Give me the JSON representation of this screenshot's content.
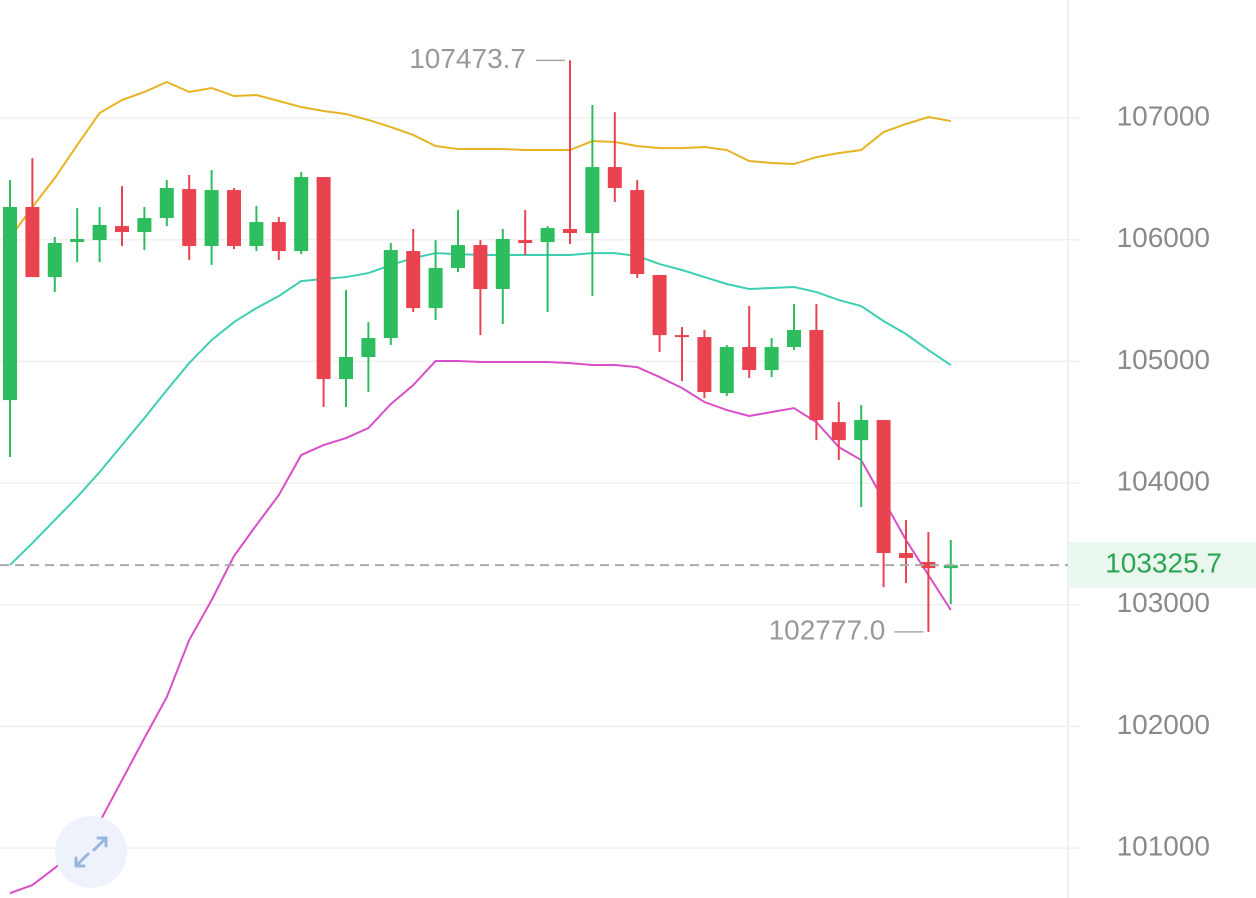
{
  "chart_data": {
    "type": "candlestick",
    "open": [
      104682,
      106269,
      105693,
      105981,
      105997,
      106112,
      106063,
      106178,
      106416,
      105948,
      106408,
      105948,
      106145,
      105907,
      106515,
      104855,
      105036,
      105192,
      105907,
      105438,
      105767,
      105956,
      105595,
      105997,
      105981,
      106088,
      106055,
      106597,
      106408,
      105710,
      105216,
      105200,
      104740,
      105118,
      104929,
      105118,
      105258,
      104501,
      104353,
      104518,
      103425,
      103351,
      103301
    ],
    "high": [
      106490,
      106671,
      106022,
      106260,
      106269,
      106441,
      106269,
      106490,
      106532,
      106573,
      106425,
      106277,
      106186,
      106556,
      106515,
      105586,
      105323,
      105973,
      106088,
      105997,
      106244,
      105997,
      106088,
      106244,
      106112,
      107473.7,
      107107,
      107049,
      106490,
      105710,
      105282,
      105258,
      105134,
      105455,
      105192,
      105471,
      105471,
      104666,
      104641,
      104518,
      103696,
      103597,
      103532
    ],
    "low": [
      104214,
      105693,
      105570,
      105816,
      105816,
      105948,
      105915,
      106112,
      105833,
      105792,
      105923,
      105907,
      105833,
      105882,
      104625,
      104625,
      104748,
      105134,
      105406,
      105340,
      105734,
      105216,
      105307,
      105874,
      105406,
      105965,
      105537,
      106310,
      105685,
      105077,
      104838,
      104699,
      104716,
      104863,
      104871,
      105093,
      104353,
      104189,
      103803,
      103145,
      103178,
      102777,
      103005
    ],
    "close": [
      106269,
      105693,
      105973,
      106006,
      106121,
      106063,
      106178,
      106425,
      105948,
      106408,
      105948,
      106145,
      105907,
      106515,
      104855,
      105036,
      105192,
      105915,
      105438,
      105767,
      105956,
      105595,
      106006,
      105973,
      106096,
      106055,
      106597,
      106425,
      105718,
      105216,
      105200,
      104748,
      105118,
      104929,
      105118,
      105258,
      104518,
      104353,
      104518,
      103425,
      103384,
      103301,
      103325.7
    ],
    "up_color": "#2dbd5f",
    "down_color": "#e8434f",
    "lines": [
      {
        "color": "#e6b422",
        "values": [
          106014,
          106269,
          106507,
          106778,
          107041,
          107148,
          107214,
          107296,
          107214,
          107247,
          107181,
          107189,
          107140,
          107090,
          107058,
          107033,
          106984,
          106926,
          106861,
          106770,
          106745,
          106745,
          106745,
          106737,
          106737,
          106737,
          106811,
          106803,
          106770,
          106753,
          106753,
          106762,
          106737,
          106647,
          106630,
          106622,
          106679,
          106712,
          106737,
          106885,
          106951,
          107008,
          106975
        ]
      },
      {
        "color": "#3ecfb2",
        "values": [
          103326,
          103507,
          103696,
          103885,
          104090,
          104312,
          104534,
          104764,
          104986,
          105175,
          105323,
          105438,
          105537,
          105660,
          105677,
          105693,
          105726,
          105792,
          105849,
          105890,
          105882,
          105874,
          105874,
          105874,
          105874,
          105874,
          105890,
          105890,
          105866,
          105800,
          105751,
          105693,
          105636,
          105595,
          105603,
          105611,
          105570,
          105504,
          105455,
          105331,
          105225,
          105093,
          104970
        ]
      },
      {
        "color": "#d94fc8",
        "values": [
          100630,
          100696,
          100836,
          101000,
          101214,
          101559,
          101904,
          102241,
          102710,
          103038,
          103400,
          103655,
          103901,
          104230,
          104312,
          104370,
          104452,
          104649,
          104805,
          105003,
          105003,
          104995,
          104995,
          104995,
          104995,
          104986,
          104970,
          104970,
          104953,
          104871,
          104781,
          104666,
          104600,
          104551,
          104584,
          104616,
          104501,
          104296,
          104189,
          103860,
          103532,
          103244,
          102957
        ]
      }
    ],
    "ylim": [
      100590,
      107970
    ],
    "yticks": [
      101000,
      102000,
      103000,
      104000,
      105000,
      106000,
      107000
    ],
    "grid": true,
    "max_marker": 107473.7,
    "min_marker": {
      "value": 102777,
      "label": "102777.0"
    },
    "last_price": 103325.7,
    "last_price_color": "#2aa552"
  }
}
